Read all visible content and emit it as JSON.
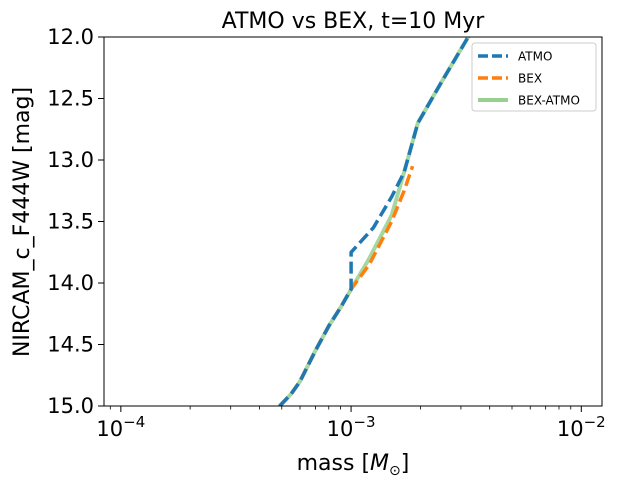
{
  "chart_data": {
    "type": "line",
    "title": "ATMO vs BEX, t=10 Myr",
    "xlabel": "mass [",
    "xlabel_unit_symbol": "M",
    "xlabel_unit_sub": "⊙",
    "xlabel_close": "]",
    "ylabel": "NIRCAM_c_F444W [mag]",
    "xscale": "log",
    "xlim": [
      8.45e-05,
      0.0123
    ],
    "ylim": [
      15.0,
      12.0
    ],
    "y_inverted": true,
    "x_ticks": [
      {
        "value": 0.0001,
        "base": "10",
        "exp": "−4"
      },
      {
        "value": 0.001,
        "base": "10",
        "exp": "−3"
      },
      {
        "value": 0.01,
        "base": "10",
        "exp": "−2"
      }
    ],
    "y_ticks": [
      {
        "value": 12.0,
        "label": "12.0"
      },
      {
        "value": 12.5,
        "label": "12.5"
      },
      {
        "value": 13.0,
        "label": "13.0"
      },
      {
        "value": 13.5,
        "label": "13.5"
      },
      {
        "value": 14.0,
        "label": "14.0"
      },
      {
        "value": 14.5,
        "label": "14.5"
      },
      {
        "value": 15.0,
        "label": "15.0"
      }
    ],
    "legend_position": "top-right",
    "grid": false,
    "series": [
      {
        "name": "ATMO",
        "color": "#1f77b4",
        "style": "dashed",
        "x": [
          0.00049,
          0.00055,
          0.0006,
          0.0007,
          0.0008,
          0.0009,
          0.001,
          0.001,
          0.00125,
          0.0015,
          0.0017,
          0.00195,
          0.0025,
          0.003,
          0.0033
        ],
        "y": [
          15.0,
          14.9,
          14.8,
          14.55,
          14.35,
          14.2,
          14.05,
          13.75,
          13.55,
          13.3,
          13.1,
          12.7,
          12.35,
          12.1,
          11.97
        ]
      },
      {
        "name": "BEX",
        "color": "#ff7f0e",
        "style": "dashed",
        "x": [
          0.00049,
          0.00055,
          0.0006,
          0.0007,
          0.0008,
          0.0009,
          0.001,
          0.0012,
          0.0015,
          0.0017,
          0.00185
        ],
        "y": [
          15.0,
          14.9,
          14.8,
          14.55,
          14.35,
          14.2,
          14.05,
          13.85,
          13.5,
          13.25,
          13.05
        ]
      },
      {
        "name": "BEX-ATMO",
        "color": "#98d08f",
        "style": "solid",
        "x": [
          0.00049,
          0.00055,
          0.0006,
          0.0007,
          0.0008,
          0.0009,
          0.001,
          0.0012,
          0.0015,
          0.0017,
          0.00195,
          0.0025,
          0.003,
          0.0033
        ],
        "y": [
          15.0,
          14.9,
          14.8,
          14.55,
          14.35,
          14.2,
          14.05,
          13.8,
          13.45,
          13.1,
          12.7,
          12.35,
          12.1,
          11.97
        ]
      }
    ]
  }
}
